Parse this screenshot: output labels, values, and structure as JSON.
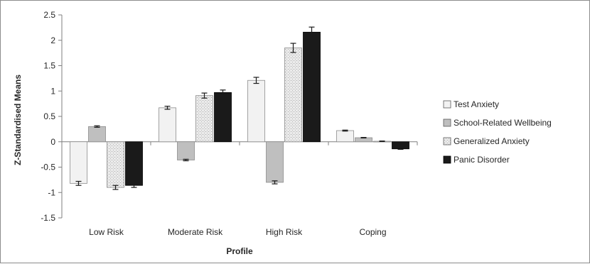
{
  "chart_data": {
    "type": "bar",
    "categories": [
      "Low Risk",
      "Moderate Risk",
      "High Risk",
      "Coping"
    ],
    "xlabel": "Profile",
    "ylabel": "Z-Standardised Means",
    "ylim": [
      -1.5,
      2.5
    ],
    "yticks": [
      "2.5",
      "2",
      "1.5",
      "1",
      "0.5",
      "0",
      "-0.5",
      "-1",
      "-1.5"
    ],
    "grid": false,
    "legend_position": "right",
    "series": [
      {
        "name": "Test Anxiety",
        "color": "#f2f2f2",
        "pattern": "solid-light",
        "values": [
          -0.82,
          0.67,
          1.21,
          0.22
        ],
        "errors": [
          0.04,
          0.03,
          0.06,
          0.01
        ]
      },
      {
        "name": "School-Related Wellbeing",
        "color": "#bfbfbf",
        "pattern": "solid-gray",
        "values": [
          0.3,
          -0.36,
          -0.8,
          0.08
        ],
        "errors": [
          0.015,
          0.015,
          0.03,
          0.005
        ]
      },
      {
        "name": "Generalized Anxiety",
        "color": "#e6e6e6",
        "pattern": "dotted",
        "values": [
          -0.9,
          0.91,
          1.85,
          0.01
        ],
        "errors": [
          0.04,
          0.05,
          0.09,
          0.005
        ]
      },
      {
        "name": "Panic Disorder",
        "color": "#1a1a1a",
        "pattern": "solid-dark",
        "values": [
          -0.86,
          0.97,
          2.16,
          -0.14
        ],
        "errors": [
          0.04,
          0.05,
          0.1,
          0.01
        ]
      }
    ]
  }
}
